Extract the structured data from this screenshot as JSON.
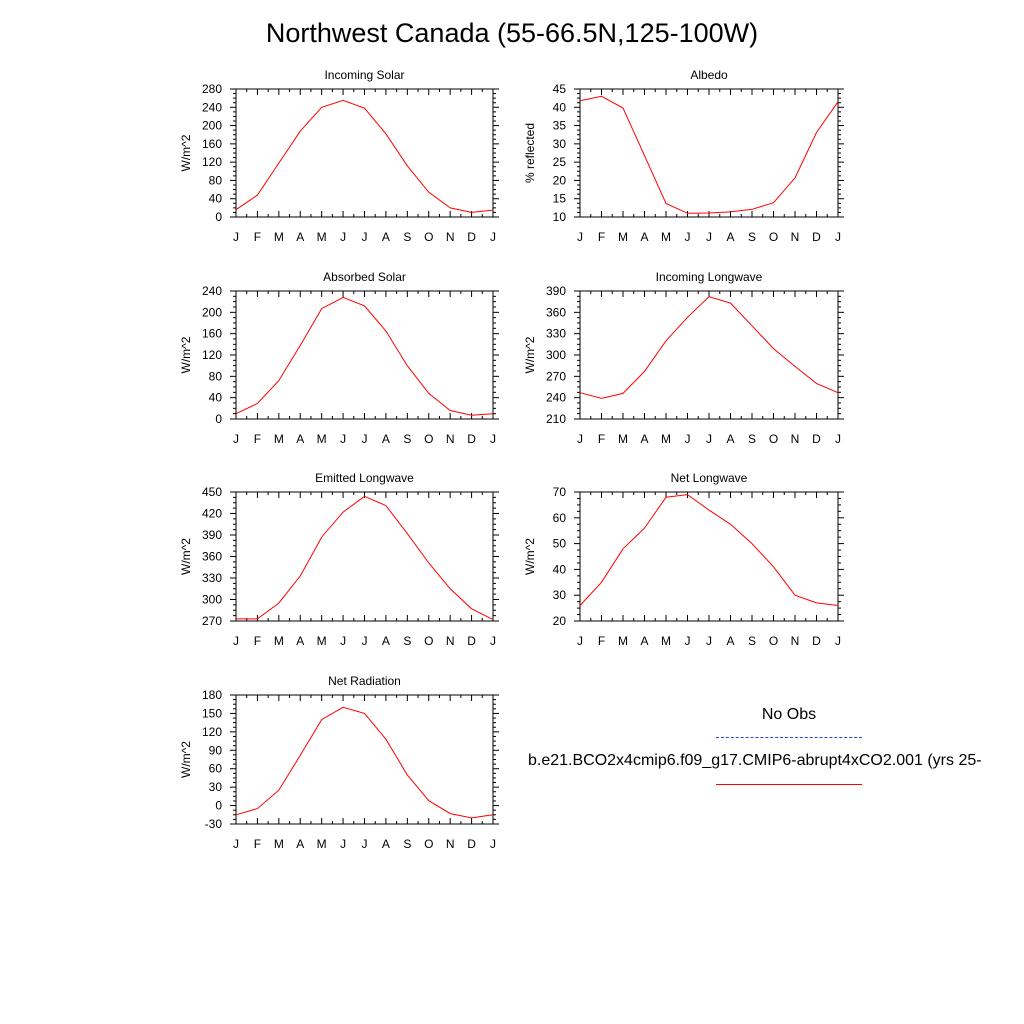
{
  "title": "Northwest Canada (55-66.5N,125-100W)",
  "legend": {
    "obs_label": "No Obs",
    "obs_color": "#3a3aff",
    "case_label": "b.e21.BCO2x4cmip6.f09_g17.CMIP6-abrupt4xCO2.001 (yrs 25-",
    "case_color": "#ff0000"
  },
  "chart_data": [
    {
      "type": "line",
      "title": "Incoming Solar",
      "ylabel": "W/m^2",
      "x": [
        "J",
        "F",
        "M",
        "A",
        "M",
        "J",
        "J",
        "A",
        "S",
        "O",
        "N",
        "D",
        "J"
      ],
      "ylim": [
        0,
        280
      ],
      "yticks": [
        0,
        40,
        80,
        120,
        160,
        200,
        240,
        280
      ],
      "series": [
        {
          "values": [
            16,
            48,
            118,
            188,
            240,
            255,
            238,
            182,
            112,
            54,
            20,
            10,
            15
          ],
          "color": "#ff0000"
        }
      ]
    },
    {
      "type": "line",
      "title": "Albedo",
      "ylabel": "% reflected",
      "x": [
        "J",
        "F",
        "M",
        "A",
        "M",
        "J",
        "J",
        "A",
        "S",
        "O",
        "N",
        "D",
        "J"
      ],
      "ylim": [
        10,
        45
      ],
      "yticks": [
        10,
        15,
        20,
        25,
        30,
        35,
        40,
        45
      ],
      "series": [
        {
          "values": [
            41.8,
            43.0,
            39.8,
            26.8,
            13.7,
            11.0,
            11.1,
            11.4,
            12.1,
            13.9,
            20.7,
            33.1,
            41.5
          ],
          "color": "#ff0000"
        }
      ]
    },
    {
      "type": "line",
      "title": "Absorbed Solar",
      "ylabel": "W/m^2",
      "x": [
        "J",
        "F",
        "M",
        "A",
        "M",
        "J",
        "J",
        "A",
        "S",
        "O",
        "N",
        "D",
        "J"
      ],
      "ylim": [
        0,
        240
      ],
      "yticks": [
        0,
        40,
        80,
        120,
        160,
        200,
        240
      ],
      "series": [
        {
          "values": [
            10,
            29,
            72,
            138,
            207,
            228,
            212,
            165,
            100,
            48,
            16,
            7,
            10
          ],
          "color": "#ff0000"
        }
      ]
    },
    {
      "type": "line",
      "title": "Incoming Longwave",
      "ylabel": "W/m^2",
      "x": [
        "J",
        "F",
        "M",
        "A",
        "M",
        "J",
        "J",
        "A",
        "S",
        "O",
        "N",
        "D",
        "J"
      ],
      "ylim": [
        210,
        390
      ],
      "yticks": [
        210,
        240,
        270,
        300,
        330,
        360,
        390
      ],
      "series": [
        {
          "values": [
            247,
            239,
            246,
            277,
            320,
            353,
            382,
            373,
            341,
            309,
            284,
            260,
            247
          ],
          "color": "#ff0000"
        }
      ]
    },
    {
      "type": "line",
      "title": "Emitted Longwave",
      "ylabel": "W/m^2",
      "x": [
        "J",
        "F",
        "M",
        "A",
        "M",
        "J",
        "J",
        "A",
        "S",
        "O",
        "N",
        "D",
        "J"
      ],
      "ylim": [
        270,
        450
      ],
      "yticks": [
        270,
        300,
        330,
        360,
        390,
        420,
        450
      ],
      "series": [
        {
          "values": [
            273,
            273,
            295,
            333,
            387,
            422,
            444,
            431,
            392,
            351,
            315,
            287,
            272
          ],
          "color": "#ff0000"
        }
      ]
    },
    {
      "type": "line",
      "title": "Net Longwave",
      "ylabel": "W/m^2",
      "x": [
        "J",
        "F",
        "M",
        "A",
        "M",
        "J",
        "J",
        "A",
        "S",
        "O",
        "N",
        "D",
        "J"
      ],
      "ylim": [
        20,
        70
      ],
      "yticks": [
        20,
        30,
        40,
        50,
        60,
        70
      ],
      "series": [
        {
          "values": [
            26,
            35,
            48,
            56,
            68,
            69,
            63,
            57.5,
            50,
            41,
            30,
            27,
            26
          ],
          "color": "#ff0000"
        }
      ]
    },
    {
      "type": "line",
      "title": "Net Radiation",
      "ylabel": "W/m^2",
      "x": [
        "J",
        "F",
        "M",
        "A",
        "M",
        "J",
        "J",
        "A",
        "S",
        "O",
        "N",
        "D",
        "J"
      ],
      "ylim": [
        -30,
        180
      ],
      "yticks": [
        -30,
        0,
        30,
        60,
        90,
        120,
        150,
        180
      ],
      "series": [
        {
          "values": [
            -15,
            -5,
            25,
            82,
            140,
            160,
            150,
            108,
            50,
            8,
            -13,
            -20,
            -15
          ],
          "color": "#ff0000"
        }
      ]
    }
  ]
}
